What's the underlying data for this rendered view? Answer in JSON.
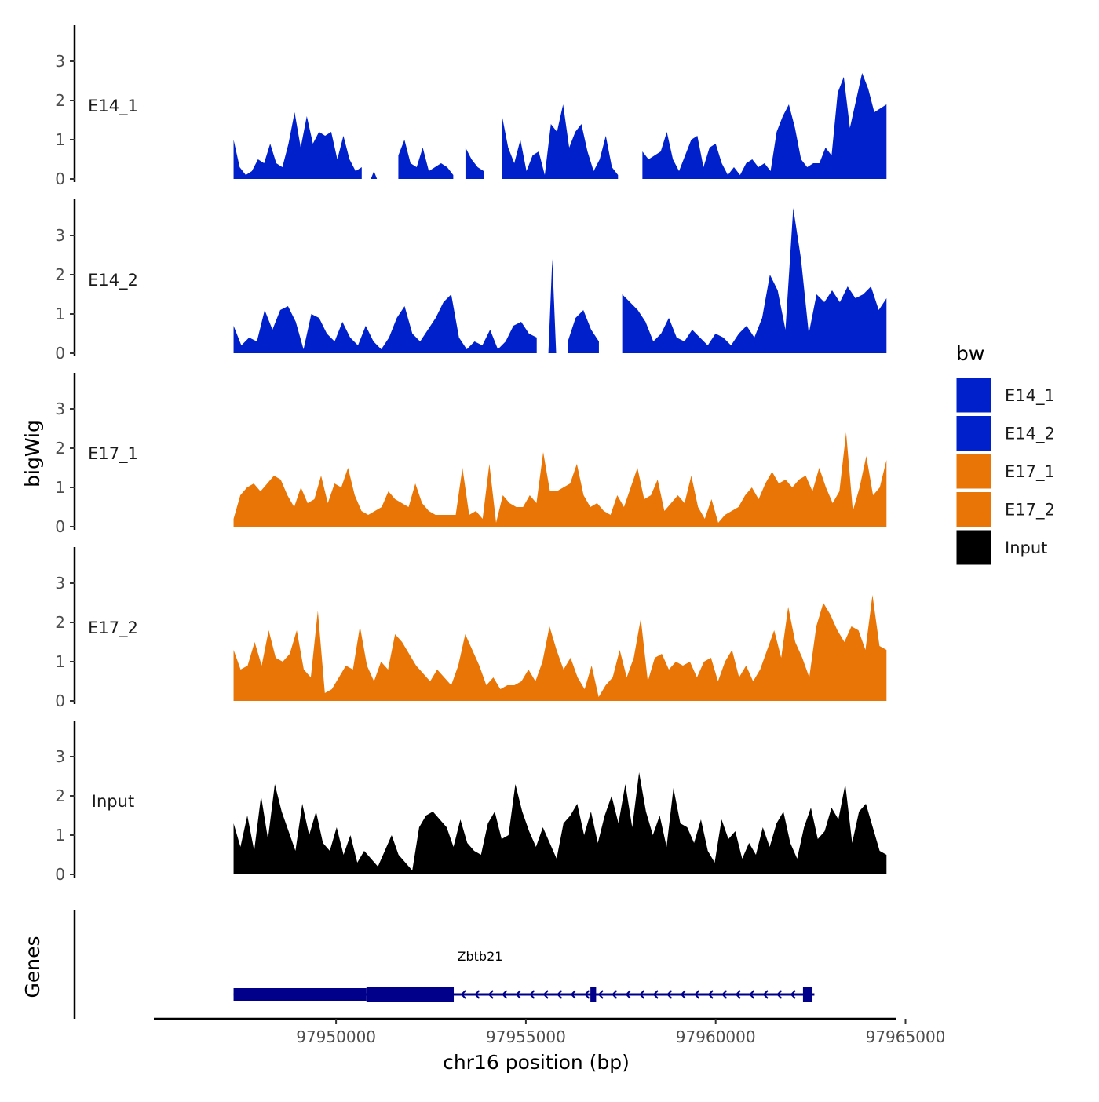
{
  "chart_data": {
    "type": "area",
    "title": "",
    "xlabel": "chr16 position (bp)",
    "ylabel": "bigWig",
    "genes_label": "Genes",
    "xlim": [
      97945200,
      97965300
    ],
    "region": [
      97947300,
      97964500
    ],
    "xticks": [
      97950000,
      97955000,
      97960000,
      97965000
    ],
    "xtick_labels": [
      "97950000",
      "97955000",
      "97960000",
      "97965000"
    ],
    "ylim": [
      0,
      3.8
    ],
    "yticks": [
      0,
      1,
      2,
      3
    ],
    "ytick_labels": [
      "0",
      "1",
      "2",
      "3"
    ],
    "legend": {
      "title": "bw",
      "position": "right",
      "entries": [
        {
          "name": "E14_1",
          "color": "#0020CC"
        },
        {
          "name": "E14_2",
          "color": "#0020CC"
        },
        {
          "name": "E17_1",
          "color": "#E87505"
        },
        {
          "name": "E17_2",
          "color": "#E87505"
        },
        {
          "name": "Input",
          "color": "#000000"
        }
      ]
    },
    "series": [
      {
        "name": "E14_1",
        "color": "#0020CC",
        "values": [
          1.0,
          0.3,
          0.1,
          0.2,
          0.5,
          0.4,
          0.9,
          0.4,
          0.3,
          0.9,
          1.7,
          0.8,
          1.6,
          0.9,
          1.2,
          1.1,
          1.2,
          0.5,
          1.1,
          0.5,
          0.2,
          0.3,
          null,
          0.2,
          null,
          null,
          null,
          0.6,
          1.0,
          0.4,
          0.3,
          0.8,
          0.2,
          0.3,
          0.4,
          0.3,
          0.1,
          null,
          0.8,
          0.5,
          0.3,
          0.2,
          null,
          null,
          1.6,
          0.8,
          0.4,
          1.0,
          0.2,
          0.6,
          0.7,
          0.1,
          1.4,
          1.2,
          1.9,
          0.8,
          1.2,
          1.4,
          0.7,
          0.2,
          0.5,
          1.1,
          0.3,
          0.1,
          null,
          null,
          null,
          0.7,
          0.5,
          0.6,
          0.7,
          1.2,
          0.5,
          0.2,
          0.6,
          1.0,
          1.1,
          0.3,
          0.8,
          0.9,
          0.4,
          0.1,
          0.3,
          0.1,
          0.4,
          0.5,
          0.3,
          0.4,
          0.2,
          1.2,
          1.6,
          1.9,
          1.3,
          0.5,
          0.3,
          0.4,
          0.4,
          0.8,
          0.6,
          2.2,
          2.6,
          1.3,
          2.0,
          2.7,
          2.3,
          1.7,
          1.8,
          1.9
        ]
      },
      {
        "name": "E14_2",
        "color": "#0020CC",
        "values": [
          0.7,
          0.2,
          0.4,
          0.3,
          1.1,
          0.6,
          1.1,
          1.2,
          0.8,
          0.1,
          1.0,
          0.9,
          0.5,
          0.3,
          0.8,
          0.4,
          0.2,
          0.7,
          0.3,
          0.1,
          0.4,
          0.9,
          1.2,
          0.5,
          0.3,
          0.6,
          0.9,
          1.3,
          1.5,
          0.4,
          0.1,
          0.3,
          0.2,
          0.6,
          0.1,
          0.3,
          0.7,
          0.8,
          0.5,
          0.4,
          null,
          2.4,
          null,
          0.3,
          0.9,
          1.1,
          0.6,
          0.3,
          null,
          null,
          1.5,
          1.3,
          1.1,
          0.8,
          0.3,
          0.5,
          0.9,
          0.4,
          0.3,
          0.6,
          0.4,
          0.2,
          0.5,
          0.4,
          0.2,
          0.5,
          0.7,
          0.4,
          0.9,
          2.0,
          1.6,
          0.6,
          3.7,
          2.4,
          0.5,
          1.5,
          1.3,
          1.6,
          1.3,
          1.7,
          1.4,
          1.5,
          1.7,
          1.1,
          1.4
        ]
      },
      {
        "name": "E17_1",
        "color": "#E87505",
        "values": [
          0.2,
          0.8,
          1.0,
          1.1,
          0.9,
          1.1,
          1.3,
          1.2,
          0.8,
          0.5,
          1.0,
          0.6,
          0.7,
          1.3,
          0.6,
          1.1,
          1.0,
          1.5,
          0.8,
          0.4,
          0.3,
          0.4,
          0.5,
          0.9,
          0.7,
          0.6,
          0.5,
          1.1,
          0.6,
          0.4,
          0.3,
          0.3,
          0.3,
          0.3,
          1.5,
          0.3,
          0.4,
          0.2,
          1.6,
          0.1,
          0.8,
          0.6,
          0.5,
          0.5,
          0.8,
          0.6,
          1.9,
          0.9,
          0.9,
          1.0,
          1.1,
          1.6,
          0.8,
          0.5,
          0.6,
          0.4,
          0.3,
          0.8,
          0.5,
          1.0,
          1.5,
          0.7,
          0.8,
          1.2,
          0.4,
          0.6,
          0.8,
          0.6,
          1.3,
          0.5,
          0.2,
          0.7,
          0.1,
          0.3,
          0.4,
          0.5,
          0.8,
          1.0,
          0.7,
          1.1,
          1.4,
          1.1,
          1.2,
          1.0,
          1.2,
          1.3,
          0.9,
          1.5,
          1.0,
          0.6,
          0.9,
          2.4,
          0.4,
          1.0,
          1.8,
          0.8,
          1.0,
          1.7
        ]
      },
      {
        "name": "E17_2",
        "color": "#E87505",
        "values": [
          1.3,
          0.8,
          0.9,
          1.5,
          0.9,
          1.8,
          1.1,
          1.0,
          1.2,
          1.8,
          0.8,
          0.6,
          2.3,
          0.2,
          0.3,
          0.6,
          0.9,
          0.8,
          1.9,
          0.9,
          0.5,
          1.0,
          0.8,
          1.7,
          1.5,
          1.2,
          0.9,
          0.7,
          0.5,
          0.8,
          0.6,
          0.4,
          0.9,
          1.7,
          1.3,
          0.9,
          0.4,
          0.6,
          0.3,
          0.4,
          0.4,
          0.5,
          0.8,
          0.5,
          1.0,
          1.9,
          1.3,
          0.8,
          1.1,
          0.6,
          0.3,
          0.9,
          0.1,
          0.4,
          0.6,
          1.3,
          0.6,
          1.1,
          2.1,
          0.5,
          1.1,
          1.2,
          0.8,
          1.0,
          0.9,
          1.0,
          0.6,
          1.0,
          1.1,
          0.5,
          1.0,
          1.3,
          0.6,
          0.9,
          0.5,
          0.8,
          1.3,
          1.8,
          1.1,
          2.4,
          1.5,
          1.1,
          0.6,
          1.9,
          2.5,
          2.2,
          1.8,
          1.5,
          1.9,
          1.8,
          1.3,
          2.7,
          1.4,
          1.3
        ]
      },
      {
        "name": "Input",
        "color": "#000000",
        "values": [
          1.3,
          0.7,
          1.5,
          0.6,
          2.0,
          0.9,
          2.3,
          1.6,
          1.1,
          0.6,
          1.8,
          1.0,
          1.6,
          0.8,
          0.6,
          1.2,
          0.5,
          1.0,
          0.3,
          0.6,
          0.4,
          0.2,
          0.6,
          1.0,
          0.5,
          0.3,
          0.1,
          1.2,
          1.5,
          1.6,
          1.4,
          1.2,
          0.7,
          1.4,
          0.8,
          0.6,
          0.5,
          1.3,
          1.6,
          0.9,
          1.0,
          2.3,
          1.6,
          1.1,
          0.7,
          1.2,
          0.8,
          0.4,
          1.3,
          1.5,
          1.8,
          1.0,
          1.6,
          0.8,
          1.5,
          2.0,
          1.3,
          2.3,
          1.2,
          2.6,
          1.6,
          1.0,
          1.5,
          0.7,
          2.2,
          1.3,
          1.2,
          0.8,
          1.4,
          0.6,
          0.3,
          1.4,
          0.9,
          1.1,
          0.4,
          0.8,
          0.5,
          1.2,
          0.7,
          1.3,
          1.6,
          0.8,
          0.4,
          1.2,
          1.7,
          0.9,
          1.1,
          1.7,
          1.4,
          2.3,
          0.8,
          1.6,
          1.8,
          1.2,
          0.6,
          0.5
        ]
      }
    ],
    "gene": {
      "name": "Zbtb21",
      "strand": "-",
      "start": 97947300,
      "end": 97962600,
      "utr3": [
        97947300,
        97950800
      ],
      "cds": [
        97950800,
        97953100
      ],
      "exons": [
        [
          97947300,
          97953100
        ],
        [
          97956700,
          97956850
        ],
        [
          97962300,
          97962550
        ]
      ]
    }
  }
}
